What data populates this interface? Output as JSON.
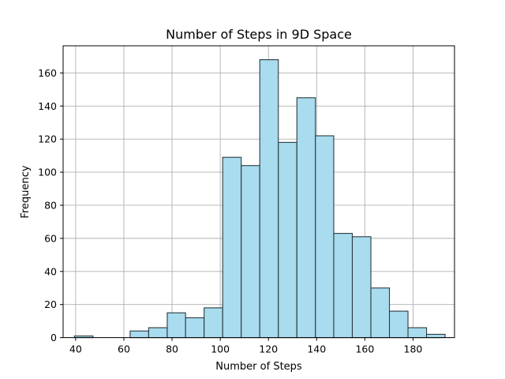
{
  "chart_data": {
    "type": "bar",
    "title": "Number of Steps in 9D Space",
    "xlabel": "Number of Steps",
    "ylabel": "Frequency",
    "xlim": [
      34.8,
      197.2
    ],
    "ylim": [
      0,
      176.4
    ],
    "x_ticks": [
      40,
      60,
      80,
      100,
      120,
      140,
      160,
      180
    ],
    "y_ticks": [
      0,
      20,
      40,
      60,
      80,
      100,
      120,
      140,
      160
    ],
    "grid": true,
    "bar_color": "#a8dcee",
    "edge_color": "#2b3a40",
    "grid_color": "#b0b0b0",
    "bins": [
      {
        "x0": 39.5,
        "x1": 47.2,
        "count": 1
      },
      {
        "x0": 47.2,
        "x1": 54.9,
        "count": 0
      },
      {
        "x0": 54.9,
        "x1": 62.6,
        "count": 0
      },
      {
        "x0": 62.6,
        "x1": 70.3,
        "count": 4
      },
      {
        "x0": 70.3,
        "x1": 78.0,
        "count": 6
      },
      {
        "x0": 78.0,
        "x1": 85.6,
        "count": 15
      },
      {
        "x0": 85.6,
        "x1": 93.3,
        "count": 12
      },
      {
        "x0": 93.3,
        "x1": 101.0,
        "count": 18
      },
      {
        "x0": 101.0,
        "x1": 108.7,
        "count": 109
      },
      {
        "x0": 108.7,
        "x1": 116.4,
        "count": 104
      },
      {
        "x0": 116.4,
        "x1": 124.1,
        "count": 168
      },
      {
        "x0": 124.1,
        "x1": 131.8,
        "count": 118
      },
      {
        "x0": 131.8,
        "x1": 139.5,
        "count": 145
      },
      {
        "x0": 139.5,
        "x1": 147.1,
        "count": 122
      },
      {
        "x0": 147.1,
        "x1": 154.8,
        "count": 63
      },
      {
        "x0": 154.8,
        "x1": 162.5,
        "count": 61
      },
      {
        "x0": 162.5,
        "x1": 170.2,
        "count": 30
      },
      {
        "x0": 170.2,
        "x1": 177.9,
        "count": 16
      },
      {
        "x0": 177.9,
        "x1": 185.6,
        "count": 6
      },
      {
        "x0": 185.6,
        "x1": 193.3,
        "count": 2
      }
    ]
  }
}
